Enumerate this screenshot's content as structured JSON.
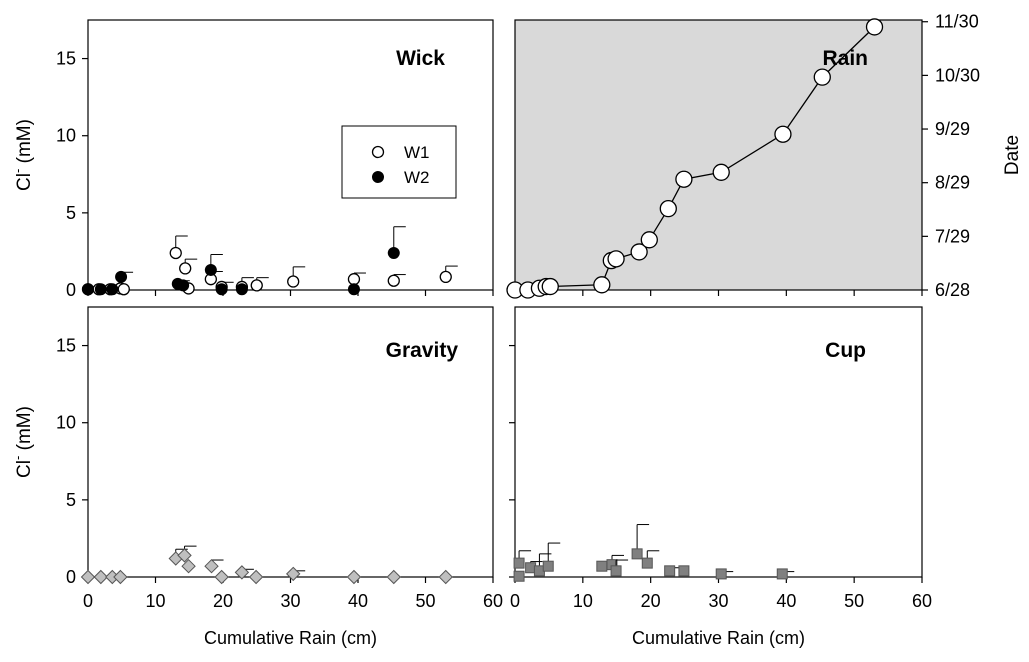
{
  "chart_data": [
    {
      "id": "wick",
      "type": "scatter",
      "panel_label": "Wick",
      "xlabel": "",
      "ylabel": "Cl⁻ (mM)",
      "xlim": [
        0,
        60
      ],
      "ylim": [
        0,
        17.5
      ],
      "xticks": [
        0,
        10,
        20,
        30,
        40,
        50,
        60
      ],
      "yticks": [
        0,
        5,
        10,
        15
      ],
      "legend": {
        "position": "right-middle",
        "entries": [
          "W1",
          "W2"
        ]
      },
      "series": [
        {
          "name": "W1",
          "marker": "circle-open",
          "color": "#ffffff",
          "points": [
            {
              "x": 0,
              "y": 0.05,
              "err": 0
            },
            {
              "x": 1.6,
              "y": 0.05,
              "err": 0
            },
            {
              "x": 3.3,
              "y": 0.05,
              "err": 0
            },
            {
              "x": 4.8,
              "y": 0.1,
              "err": 0
            },
            {
              "x": 5.3,
              "y": 0.05,
              "err": 0
            },
            {
              "x": 13,
              "y": 2.4,
              "err": 1.1
            },
            {
              "x": 14.4,
              "y": 1.4,
              "err": 0.6
            },
            {
              "x": 14.9,
              "y": 0.1,
              "err": 0
            },
            {
              "x": 18.2,
              "y": 0.7,
              "err": 0.5
            },
            {
              "x": 19.8,
              "y": 0.2,
              "err": 0.3
            },
            {
              "x": 22.8,
              "y": 0.2,
              "err": 0.6
            },
            {
              "x": 25,
              "y": 0.3,
              "err": 0.5
            },
            {
              "x": 30.4,
              "y": 0.55,
              "err": 0.95
            },
            {
              "x": 39.4,
              "y": 0.7,
              "err": 0.4
            },
            {
              "x": 45.3,
              "y": 0.6,
              "err": 0.4
            },
            {
              "x": 53,
              "y": 0.85,
              "err": 0.7
            }
          ]
        },
        {
          "name": "W2",
          "marker": "circle-filled",
          "color": "#000000",
          "points": [
            {
              "x": 0,
              "y": 0.05,
              "err": 0
            },
            {
              "x": 1.9,
              "y": 0.05,
              "err": 0
            },
            {
              "x": 3.6,
              "y": 0.05,
              "err": 0
            },
            {
              "x": 4.9,
              "y": 0.85,
              "err": 0.3
            },
            {
              "x": 13.3,
              "y": 0.4,
              "err": 0.2
            },
            {
              "x": 14.1,
              "y": 0.3,
              "err": 0
            },
            {
              "x": 18.2,
              "y": 1.3,
              "err": 1.0
            },
            {
              "x": 19.8,
              "y": 0.05,
              "err": 0
            },
            {
              "x": 22.8,
              "y": 0.05,
              "err": 0
            },
            {
              "x": 39.4,
              "y": 0.05,
              "err": 0
            },
            {
              "x": 45.3,
              "y": 2.4,
              "err": 1.7
            }
          ]
        }
      ]
    },
    {
      "id": "rain",
      "type": "line",
      "panel_label": "Rain",
      "xlabel": "",
      "ylabel": "Date",
      "y_axis_side": "right",
      "background": "#d9d9d9",
      "xlim": [
        0,
        60
      ],
      "ylim": [
        "2006-06-28",
        "2006-12-01"
      ],
      "xticks": [
        0,
        10,
        20,
        30,
        40,
        50,
        60
      ],
      "ytick_labels": [
        "6/28",
        "7/29",
        "8/29",
        "9/29",
        "10/30",
        "11/30"
      ],
      "ytick_dates": [
        "2006-06-28",
        "2006-07-29",
        "2006-08-29",
        "2006-09-29",
        "2006-10-30",
        "2006-11-30"
      ],
      "series": [
        {
          "name": "",
          "marker": "circle-open",
          "color": "#ffffff",
          "points": [
            {
              "x": 0,
              "y": "2006-06-28"
            },
            {
              "x": 1.9,
              "y": "2006-06-28"
            },
            {
              "x": 3.6,
              "y": "2006-06-29"
            },
            {
              "x": 4.6,
              "y": "2006-06-30"
            },
            {
              "x": 5.2,
              "y": "2006-06-30"
            },
            {
              "x": 12.8,
              "y": "2006-07-01"
            },
            {
              "x": 14.2,
              "y": "2006-07-15"
            },
            {
              "x": 14.9,
              "y": "2006-07-16"
            },
            {
              "x": 18.3,
              "y": "2006-07-20"
            },
            {
              "x": 19.8,
              "y": "2006-07-27"
            },
            {
              "x": 22.6,
              "y": "2006-08-14"
            },
            {
              "x": 24.9,
              "y": "2006-08-31"
            },
            {
              "x": 30.4,
              "y": "2006-09-04"
            },
            {
              "x": 39.5,
              "y": "2006-09-26"
            },
            {
              "x": 45.3,
              "y": "2006-10-29"
            },
            {
              "x": 53,
              "y": "2006-11-27"
            }
          ]
        }
      ]
    },
    {
      "id": "gravity",
      "type": "scatter",
      "panel_label": "Gravity",
      "xlabel": "Cumulative Rain (cm)",
      "ylabel": "Cl⁻ (mM)",
      "xlim": [
        0,
        60
      ],
      "ylim": [
        0,
        17.5
      ],
      "xticks": [
        0,
        10,
        20,
        30,
        40,
        50,
        60
      ],
      "yticks": [
        0,
        5,
        10,
        15
      ],
      "series": [
        {
          "name": "",
          "marker": "diamond",
          "color": "#bfbfbf",
          "points": [
            {
              "x": 0,
              "y": 0,
              "err": 0
            },
            {
              "x": 1.9,
              "y": 0,
              "err": 0
            },
            {
              "x": 3.6,
              "y": 0,
              "err": 0
            },
            {
              "x": 4.8,
              "y": 0,
              "err": 0
            },
            {
              "x": 13,
              "y": 1.2,
              "err": 0.6
            },
            {
              "x": 14.3,
              "y": 1.4,
              "err": 0.6
            },
            {
              "x": 14.9,
              "y": 0.7,
              "err": 0
            },
            {
              "x": 18.3,
              "y": 0.7,
              "err": 0.4
            },
            {
              "x": 19.8,
              "y": 0,
              "err": 0
            },
            {
              "x": 22.8,
              "y": 0.3,
              "err": 0.2
            },
            {
              "x": 24.9,
              "y": 0,
              "err": 0
            },
            {
              "x": 30.4,
              "y": 0.2,
              "err": 0.2
            },
            {
              "x": 39.4,
              "y": 0,
              "err": 0
            },
            {
              "x": 45.3,
              "y": 0,
              "err": 0
            },
            {
              "x": 53,
              "y": 0,
              "err": 0
            }
          ]
        }
      ]
    },
    {
      "id": "cup",
      "type": "scatter",
      "panel_label": "Cup",
      "xlabel": "Cumulative Rain (cm)",
      "ylabel": "",
      "xlim": [
        0,
        60
      ],
      "ylim": [
        0,
        17.5
      ],
      "xticks": [
        0,
        10,
        20,
        30,
        40,
        50,
        60
      ],
      "series": [
        {
          "name": "",
          "marker": "square",
          "color": "#808080",
          "points": [
            {
              "x": 0.6,
              "y": 0.9,
              "err": 0.8
            },
            {
              "x": 0.6,
              "y": 0.05,
              "err": 0
            },
            {
              "x": 2.3,
              "y": 0.6,
              "err": 0.4
            },
            {
              "x": 3.6,
              "y": 0.4,
              "err": 1.1
            },
            {
              "x": 4.9,
              "y": 0.7,
              "err": 1.5
            },
            {
              "x": 12.8,
              "y": 0.7,
              "err": 0.3
            },
            {
              "x": 14.3,
              "y": 0.8,
              "err": 0.6
            },
            {
              "x": 14.9,
              "y": 0.4,
              "err": 0.7
            },
            {
              "x": 18,
              "y": 1.5,
              "err": 1.9
            },
            {
              "x": 19.5,
              "y": 0.9,
              "err": 0.8
            },
            {
              "x": 22.8,
              "y": 0.4,
              "err": 0.2
            },
            {
              "x": 24.9,
              "y": 0.4,
              "err": 0
            },
            {
              "x": 30.4,
              "y": 0.2,
              "err": 0.15
            },
            {
              "x": 39.4,
              "y": 0.2,
              "err": 0.15
            }
          ]
        }
      ]
    }
  ]
}
